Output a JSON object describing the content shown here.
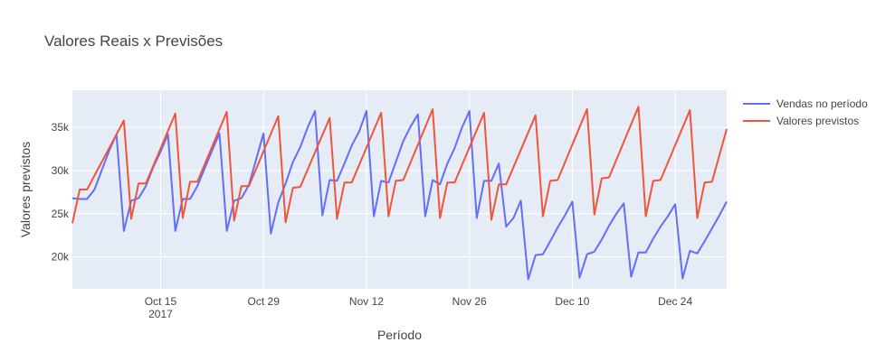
{
  "chart_data": {
    "type": "line",
    "title": "Valores Reais x Previsões",
    "xlabel": "Período",
    "ylabel": "Valores previstos",
    "x_start": "2017-10-03",
    "x_range": [
      "2017-10-03",
      "2017-12-31"
    ],
    "ylim": [
      16300,
      39300
    ],
    "x_ticks": [
      {
        "date": "2017-10-15",
        "label": "Oct 15",
        "sublabel": "2017"
      },
      {
        "date": "2017-10-29",
        "label": "Oct 29",
        "sublabel": ""
      },
      {
        "date": "2017-11-12",
        "label": "Nov 12",
        "sublabel": ""
      },
      {
        "date": "2017-11-26",
        "label": "Nov 26",
        "sublabel": ""
      },
      {
        "date": "2017-12-10",
        "label": "Dec 10",
        "sublabel": ""
      },
      {
        "date": "2017-12-24",
        "label": "Dec 24",
        "sublabel": ""
      }
    ],
    "y_ticks": [
      {
        "value": 20000,
        "label": "20k"
      },
      {
        "value": 25000,
        "label": "25k"
      },
      {
        "value": 30000,
        "label": "30k"
      },
      {
        "value": 35000,
        "label": "35k"
      }
    ],
    "grid": true,
    "legend_position": "top-right",
    "series": [
      {
        "name": "Vendas no período",
        "color": "#636efa",
        "x": [
          "2017-10-03",
          "2017-10-04",
          "2017-10-05",
          "2017-10-06",
          "2017-10-08",
          "2017-10-09",
          "2017-10-10",
          "2017-10-11",
          "2017-10-12",
          "2017-10-13",
          "2017-10-14",
          "2017-10-15",
          "2017-10-16",
          "2017-10-17",
          "2017-10-18",
          "2017-10-19",
          "2017-10-20",
          "2017-10-22",
          "2017-10-23",
          "2017-10-24",
          "2017-10-25",
          "2017-10-26",
          "2017-10-27",
          "2017-10-29",
          "2017-10-30",
          "2017-10-31",
          "2017-11-01",
          "2017-11-02",
          "2017-11-03",
          "2017-11-04",
          "2017-11-05",
          "2017-11-06",
          "2017-11-07",
          "2017-11-08",
          "2017-11-09",
          "2017-11-10",
          "2017-11-11",
          "2017-11-12",
          "2017-11-13",
          "2017-11-14",
          "2017-11-15",
          "2017-11-16",
          "2017-11-17",
          "2017-11-18",
          "2017-11-19",
          "2017-11-20",
          "2017-11-21",
          "2017-11-22",
          "2017-11-23",
          "2017-11-24",
          "2017-11-25",
          "2017-11-26",
          "2017-11-27",
          "2017-11-28",
          "2017-11-29",
          "2017-11-30",
          "2017-12-01",
          "2017-12-02",
          "2017-12-03",
          "2017-12-04",
          "2017-12-05",
          "2017-12-06",
          "2017-12-07",
          "2017-12-08",
          "2017-12-09",
          "2017-12-10",
          "2017-12-11",
          "2017-12-12",
          "2017-12-13",
          "2017-12-14",
          "2017-12-15",
          "2017-12-16",
          "2017-12-17",
          "2017-12-18",
          "2017-12-19",
          "2017-12-20",
          "2017-12-21",
          "2017-12-22",
          "2017-12-23",
          "2017-12-24",
          "2017-12-25",
          "2017-12-26",
          "2017-12-27",
          "2017-12-28",
          "2017-12-29",
          "2017-12-30",
          "2017-12-31"
        ],
        "values": [
          26800,
          26700,
          26700,
          27800,
          32300,
          34200,
          23000,
          26500,
          26800,
          28200,
          30400,
          32200,
          34200,
          23000,
          26700,
          26700,
          28200,
          32300,
          34300,
          23000,
          26500,
          26800,
          28300,
          34300,
          22700,
          26300,
          28500,
          31000,
          32700,
          35000,
          36900,
          24800,
          28900,
          28800,
          30800,
          32900,
          34500,
          36900,
          24700,
          28800,
          28600,
          31000,
          33400,
          35100,
          36500,
          24700,
          28900,
          28400,
          30800,
          32600,
          35000,
          36900,
          24500,
          28800,
          28800,
          30800,
          23500,
          24500,
          26500,
          17400,
          20200,
          20300,
          21800,
          23400,
          24800,
          26400,
          17600,
          20300,
          20600,
          22000,
          23600,
          25000,
          26200,
          17700,
          20500,
          20500,
          22100,
          23500,
          24700,
          26100,
          17500,
          20700,
          20400,
          21800,
          23300,
          24800,
          26400
        ]
      },
      {
        "name": "Valores previstos",
        "color": "#ef553b",
        "x": [
          "2017-10-03",
          "2017-10-04",
          "2017-10-05",
          "2017-10-10",
          "2017-10-11",
          "2017-10-12",
          "2017-10-13",
          "2017-10-17",
          "2017-10-18",
          "2017-10-19",
          "2017-10-20",
          "2017-10-24",
          "2017-10-25",
          "2017-10-26",
          "2017-10-27",
          "2017-10-31",
          "2017-11-01",
          "2017-11-02",
          "2017-11-03",
          "2017-11-07",
          "2017-11-08",
          "2017-11-09",
          "2017-11-10",
          "2017-11-14",
          "2017-11-15",
          "2017-11-16",
          "2017-11-17",
          "2017-11-21",
          "2017-11-22",
          "2017-11-23",
          "2017-11-24",
          "2017-11-28",
          "2017-11-29",
          "2017-11-30",
          "2017-12-01",
          "2017-12-05",
          "2017-12-06",
          "2017-12-07",
          "2017-12-08",
          "2017-12-12",
          "2017-12-13",
          "2017-12-14",
          "2017-12-15",
          "2017-12-19",
          "2017-12-20",
          "2017-12-21",
          "2017-12-22",
          "2017-12-26",
          "2017-12-27",
          "2017-12-28",
          "2017-12-29",
          "2017-12-31"
        ],
        "values": [
          23900,
          27800,
          27800,
          35800,
          24400,
          28500,
          28500,
          36600,
          24500,
          28700,
          28700,
          36800,
          24200,
          28200,
          28200,
          36300,
          24000,
          28000,
          28100,
          36100,
          24400,
          28600,
          28600,
          36700,
          24700,
          28800,
          28900,
          37100,
          24500,
          28600,
          28600,
          36700,
          24300,
          28400,
          28400,
          36400,
          24700,
          28800,
          28900,
          37100,
          24900,
          29100,
          29200,
          37400,
          24700,
          28800,
          28900,
          37000,
          24500,
          28600,
          28700,
          34800
        ]
      }
    ]
  }
}
